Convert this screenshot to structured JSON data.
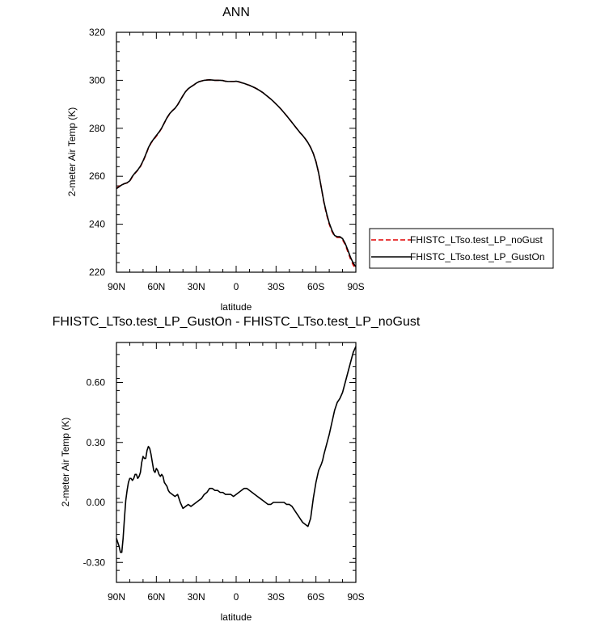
{
  "chart_data": [
    {
      "type": "line",
      "title": "ANN",
      "xlabel": "latitude",
      "ylabel": "2-meter Air Temp (K)",
      "xlim": [
        90,
        -90
      ],
      "ylim": [
        220,
        320
      ],
      "x_ticks": [
        {
          "value": 90,
          "label": "90N"
        },
        {
          "value": 60,
          "label": "60N"
        },
        {
          "value": 30,
          "label": "30N"
        },
        {
          "value": 0,
          "label": "0"
        },
        {
          "value": -30,
          "label": "30S"
        },
        {
          "value": -60,
          "label": "60S"
        },
        {
          "value": -90,
          "label": "90S"
        }
      ],
      "y_ticks": [
        {
          "value": 220,
          "label": "220"
        },
        {
          "value": 240,
          "label": "240"
        },
        {
          "value": 260,
          "label": "260"
        },
        {
          "value": 280,
          "label": "280"
        },
        {
          "value": 300,
          "label": "300"
        },
        {
          "value": 320,
          "label": "320"
        }
      ],
      "legend_position": "right",
      "series": [
        {
          "name": "FHISTC_LTso.test_LP_noGust",
          "color": "#e00000",
          "dash": "dashed",
          "x": [
            90,
            88,
            86,
            84,
            82,
            80,
            78,
            76,
            74,
            72,
            70,
            68,
            66,
            64,
            62,
            60,
            58,
            56,
            54,
            52,
            50,
            48,
            46,
            44,
            42,
            40,
            38,
            36,
            34,
            32,
            30,
            28,
            26,
            24,
            22,
            20,
            18,
            16,
            14,
            12,
            10,
            8,
            6,
            4,
            2,
            0,
            -2,
            -4,
            -6,
            -8,
            -10,
            -12,
            -14,
            -16,
            -18,
            -20,
            -22,
            -24,
            -26,
            -28,
            -30,
            -32,
            -34,
            -36,
            -38,
            -40,
            -42,
            -44,
            -46,
            -48,
            -50,
            -52,
            -54,
            -56,
            -58,
            -60,
            -62,
            -64,
            -66,
            -68,
            -70,
            -72,
            -74,
            -76,
            -78,
            -80,
            -82,
            -84,
            -86,
            -88,
            -90
          ],
          "y": [
            255.0,
            255.8,
            256.6,
            256.9,
            257.2,
            258.0,
            259.8,
            261.2,
            262.5,
            264.0,
            266.2,
            268.8,
            271.7,
            273.8,
            275.3,
            276.7,
            278.2,
            280.0,
            282.2,
            284.3,
            286.0,
            287.3,
            288.3,
            289.8,
            291.7,
            293.6,
            295.3,
            296.5,
            297.3,
            298.0,
            298.8,
            299.4,
            299.7,
            300.0,
            300.1,
            300.2,
            300.1,
            300.0,
            300.0,
            300.0,
            299.9,
            299.6,
            299.5,
            299.5,
            299.5,
            299.5,
            299.3,
            299.0,
            298.7,
            298.3,
            297.9,
            297.4,
            296.9,
            296.3,
            295.6,
            294.9,
            294.0,
            293.1,
            292.2,
            291.2,
            290.1,
            289.0,
            287.8,
            286.5,
            285.2,
            283.8,
            282.4,
            281.0,
            279.6,
            278.2,
            277.0,
            275.6,
            274.0,
            272.0,
            269.5,
            266.2,
            261.5,
            255.4,
            249.0,
            244.0,
            240.0,
            237.0,
            235.0,
            234.5,
            234.5,
            233.5,
            231.5,
            228.5,
            225.5,
            223.0,
            221.5
          ]
        },
        {
          "name": "FHISTC_LTso.test_LP_GustOn",
          "color": "#000000",
          "dash": "solid",
          "x": [
            90,
            88,
            86,
            84,
            82,
            80,
            78,
            76,
            74,
            72,
            70,
            68,
            66,
            64,
            62,
            60,
            58,
            56,
            54,
            52,
            50,
            48,
            46,
            44,
            42,
            40,
            38,
            36,
            34,
            32,
            30,
            28,
            26,
            24,
            22,
            20,
            18,
            16,
            14,
            12,
            10,
            8,
            6,
            4,
            2,
            0,
            -2,
            -4,
            -6,
            -8,
            -10,
            -12,
            -14,
            -16,
            -18,
            -20,
            -22,
            -24,
            -26,
            -28,
            -30,
            -32,
            -34,
            -36,
            -38,
            -40,
            -42,
            -44,
            -46,
            -48,
            -50,
            -52,
            -54,
            -56,
            -58,
            -60,
            -62,
            -64,
            -66,
            -68,
            -70,
            -72,
            -74,
            -76,
            -78,
            -80,
            -82,
            -84,
            -86,
            -88,
            -90
          ],
          "y": [
            254.8,
            255.6,
            256.4,
            256.9,
            257.3,
            258.1,
            260.0,
            261.4,
            262.6,
            264.2,
            266.4,
            269.0,
            271.9,
            274.0,
            275.5,
            277.0,
            278.4,
            280.1,
            282.3,
            284.4,
            286.1,
            287.3,
            288.3,
            289.8,
            291.7,
            293.6,
            295.3,
            296.5,
            297.3,
            298.0,
            298.8,
            299.4,
            299.7,
            300.0,
            300.1,
            300.2,
            300.1,
            300.0,
            300.0,
            300.0,
            299.9,
            299.6,
            299.5,
            299.5,
            299.5,
            299.6,
            299.4,
            299.0,
            298.7,
            298.3,
            297.9,
            297.4,
            296.9,
            296.3,
            295.6,
            294.9,
            294.0,
            293.1,
            292.2,
            291.2,
            290.1,
            289.0,
            287.8,
            286.5,
            285.2,
            283.8,
            282.4,
            281.0,
            279.6,
            278.2,
            277.0,
            275.6,
            274.0,
            272.0,
            269.5,
            266.1,
            261.4,
            255.4,
            249.3,
            244.5,
            240.5,
            237.5,
            235.3,
            234.8,
            234.8,
            234.0,
            232.0,
            229.2,
            226.2,
            223.8,
            222.3
          ]
        }
      ]
    },
    {
      "type": "line",
      "title": "FHISTC_LTso.test_LP_GustOn - FHISTC_LTso.test_LP_noGust",
      "xlabel": "latitude",
      "ylabel": "2-meter Air Temp (K)",
      "xlim": [
        90,
        -90
      ],
      "ylim": [
        -0.4,
        0.8
      ],
      "x_ticks": [
        {
          "value": 90,
          "label": "90N"
        },
        {
          "value": 60,
          "label": "60N"
        },
        {
          "value": 30,
          "label": "30N"
        },
        {
          "value": 0,
          "label": "0"
        },
        {
          "value": -30,
          "label": "30S"
        },
        {
          "value": -60,
          "label": "60S"
        },
        {
          "value": -90,
          "label": "90S"
        }
      ],
      "y_ticks": [
        {
          "value": -0.3,
          "label": "-0.30"
        },
        {
          "value": 0.0,
          "label": "0.00"
        },
        {
          "value": 0.3,
          "label": "0.30"
        },
        {
          "value": 0.6,
          "label": "0.60"
        }
      ],
      "series": [
        {
          "color": "#000000",
          "dash": "solid",
          "x": [
            90,
            88,
            87,
            86,
            85,
            84,
            83,
            82,
            81,
            80,
            79,
            78,
            77,
            76,
            75,
            74,
            73,
            72,
            71,
            70,
            69,
            68,
            67,
            66,
            65,
            64,
            63,
            62,
            61,
            60,
            59,
            58,
            57,
            56,
            55,
            54,
            53,
            52,
            51,
            50,
            48,
            46,
            44,
            42,
            40,
            38,
            36,
            34,
            32,
            30,
            28,
            26,
            24,
            22,
            20,
            18,
            16,
            14,
            12,
            10,
            8,
            6,
            4,
            2,
            0,
            -2,
            -4,
            -6,
            -8,
            -10,
            -12,
            -14,
            -16,
            -18,
            -20,
            -22,
            -24,
            -26,
            -28,
            -30,
            -32,
            -34,
            -36,
            -38,
            -40,
            -42,
            -44,
            -46,
            -48,
            -50,
            -52,
            -54,
            -56,
            -58,
            -60,
            -62,
            -64,
            -65,
            -66,
            -68,
            -70,
            -72,
            -74,
            -76,
            -78,
            -80,
            -82,
            -84,
            -86,
            -88,
            -90
          ],
          "y": [
            -0.18,
            -0.22,
            -0.25,
            -0.25,
            -0.18,
            -0.08,
            0.01,
            0.06,
            0.1,
            0.12,
            0.12,
            0.11,
            0.12,
            0.14,
            0.14,
            0.12,
            0.13,
            0.15,
            0.2,
            0.23,
            0.22,
            0.22,
            0.26,
            0.28,
            0.27,
            0.24,
            0.2,
            0.16,
            0.15,
            0.17,
            0.16,
            0.14,
            0.13,
            0.14,
            0.13,
            0.1,
            0.09,
            0.08,
            0.06,
            0.05,
            0.04,
            0.03,
            0.04,
            0.0,
            -0.03,
            -0.02,
            -0.01,
            -0.02,
            -0.01,
            0.0,
            0.01,
            0.02,
            0.04,
            0.05,
            0.07,
            0.07,
            0.06,
            0.06,
            0.05,
            0.05,
            0.04,
            0.04,
            0.04,
            0.03,
            0.04,
            0.05,
            0.06,
            0.07,
            0.07,
            0.06,
            0.05,
            0.04,
            0.03,
            0.02,
            0.01,
            0.0,
            -0.01,
            -0.01,
            0.0,
            0.0,
            0.0,
            0.0,
            0.0,
            -0.01,
            -0.01,
            -0.02,
            -0.04,
            -0.06,
            -0.08,
            -0.1,
            -0.11,
            -0.12,
            -0.08,
            0.02,
            0.1,
            0.16,
            0.19,
            0.21,
            0.24,
            0.29,
            0.34,
            0.4,
            0.46,
            0.5,
            0.52,
            0.55,
            0.6,
            0.65,
            0.7,
            0.75,
            0.78
          ]
        }
      ]
    }
  ]
}
